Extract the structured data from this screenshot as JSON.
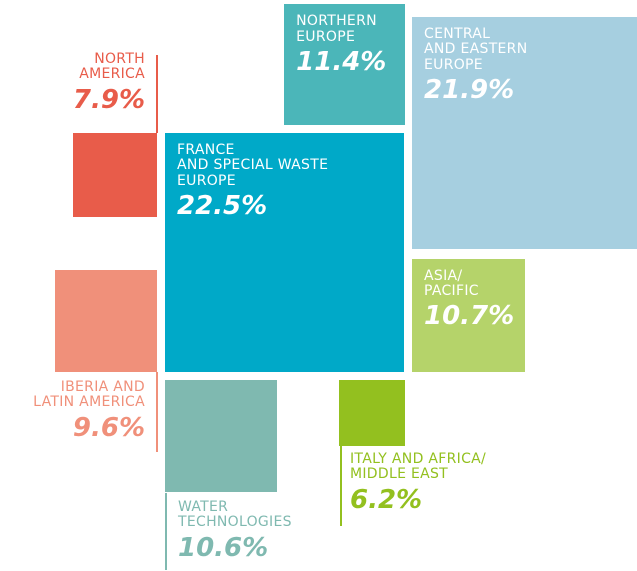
{
  "chart_data": {
    "type": "squares",
    "categories": [
      "NORTH\nAMERICA",
      "IBERIA AND\nLATIN AMERICA",
      "FRANCE\nAND SPECIAL WASTE\nEUROPE",
      "NORTHERN\nEUROPE",
      "CENTRAL\nAND EASTERN\nEUROPE",
      "ASIA/\nPACIFIC",
      "WATER\nTECHNOLOGIES",
      "ITALY AND AFRICA/\nMIDDLE EAST"
    ],
    "values": [
      7.9,
      9.6,
      22.5,
      11.4,
      21.9,
      10.7,
      10.6,
      6.2
    ],
    "value_labels": [
      "7.9%",
      "9.6%",
      "22.5%",
      "11.4%",
      "21.9%",
      "10.7%",
      "10.6%",
      "6.2%"
    ],
    "colors": [
      "#e85c4a",
      "#f0907a",
      "#00a9c8",
      "#4bb6b9",
      "#a6cfe0",
      "#b5d36a",
      "#7fb9b0",
      "#93c01f"
    ]
  }
}
